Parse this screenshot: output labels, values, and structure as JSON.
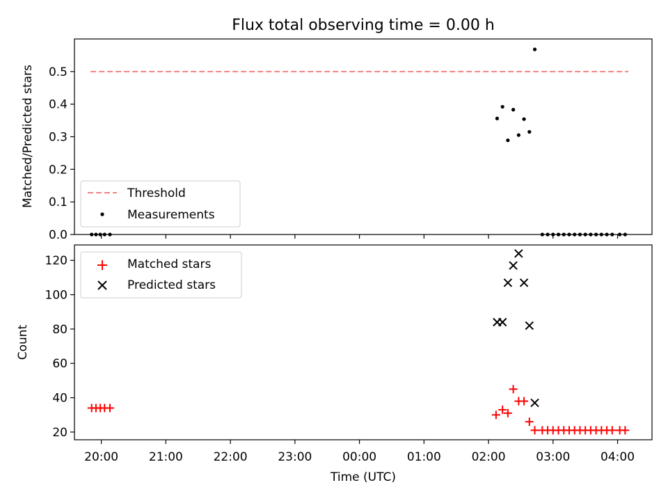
{
  "chart_data": [
    {
      "type": "scatter",
      "title": "Flux total observing time = 0.00 h",
      "xlabel": "",
      "ylabel": "Matched/Predicted stars",
      "xlim": [
        "19:35",
        "04:32"
      ],
      "ylim": [
        0,
        0.6
      ],
      "x_tick_labels_shown": false,
      "y_ticks": [
        "0.0",
        "0.1",
        "0.2",
        "0.3",
        "0.4",
        "0.5"
      ],
      "legend_position": "lower-left",
      "series": [
        {
          "name": "Threshold",
          "kind": "line",
          "style": "dashed",
          "color": "#f08080",
          "x": [
            "19:50",
            "04:10"
          ],
          "y": [
            0.5,
            0.5
          ]
        },
        {
          "name": "Measurements",
          "kind": "scatter",
          "marker": "dot",
          "color": "#000000",
          "x": [
            "19:51",
            "19:55",
            "19:59",
            "20:03",
            "20:08",
            "02:08",
            "02:13",
            "02:18",
            "02:23",
            "02:28",
            "02:33",
            "02:38",
            "02:43",
            "02:50",
            "02:55",
            "03:00",
            "03:05",
            "03:10",
            "03:15",
            "03:20",
            "03:25",
            "03:30",
            "03:35",
            "03:40",
            "03:45",
            "03:50",
            "03:55",
            "04:02",
            "04:07"
          ],
          "y": [
            0,
            0,
            0,
            0,
            0,
            0.356,
            0.392,
            0.289,
            0.383,
            0.305,
            0.354,
            0.315,
            0.568,
            0,
            0,
            0,
            0,
            0,
            0,
            0,
            0,
            0,
            0,
            0,
            0,
            0,
            0,
            0,
            0
          ]
        }
      ]
    },
    {
      "type": "scatter",
      "title": "",
      "xlabel": "Time (UTC)",
      "ylabel": "Count",
      "xlim": [
        "19:35",
        "04:32"
      ],
      "ylim": [
        15.5,
        129
      ],
      "x_ticks": [
        "20:00",
        "21:00",
        "22:00",
        "23:00",
        "00:00",
        "01:00",
        "02:00",
        "03:00",
        "04:00"
      ],
      "y_ticks": [
        "20",
        "40",
        "60",
        "80",
        "100",
        "120"
      ],
      "legend_position": "upper-left",
      "series": [
        {
          "name": "Matched stars",
          "marker": "plus",
          "color": "#ff0000",
          "x": [
            "19:51",
            "19:55",
            "19:59",
            "20:03",
            "20:08",
            "02:07",
            "02:13",
            "02:18",
            "02:23",
            "02:28",
            "02:33",
            "02:38",
            "02:43",
            "02:50",
            "02:55",
            "03:00",
            "03:05",
            "03:10",
            "03:15",
            "03:20",
            "03:25",
            "03:30",
            "03:35",
            "03:40",
            "03:45",
            "03:50",
            "03:55",
            "04:02",
            "04:07"
          ],
          "y": [
            34,
            34,
            34,
            34,
            34,
            30,
            33,
            31,
            45,
            38,
            38,
            26,
            21,
            21,
            21,
            21,
            21,
            21,
            21,
            21,
            21,
            21,
            21,
            21,
            21,
            21,
            21,
            21,
            21
          ]
        },
        {
          "name": "Predicted stars",
          "marker": "x",
          "color": "#000000",
          "x": [
            "02:08",
            "02:13",
            "02:18",
            "02:23",
            "02:28",
            "02:33",
            "02:38",
            "02:43"
          ],
          "y": [
            84,
            84,
            107,
            117,
            124,
            107,
            82,
            37
          ]
        }
      ]
    }
  ]
}
